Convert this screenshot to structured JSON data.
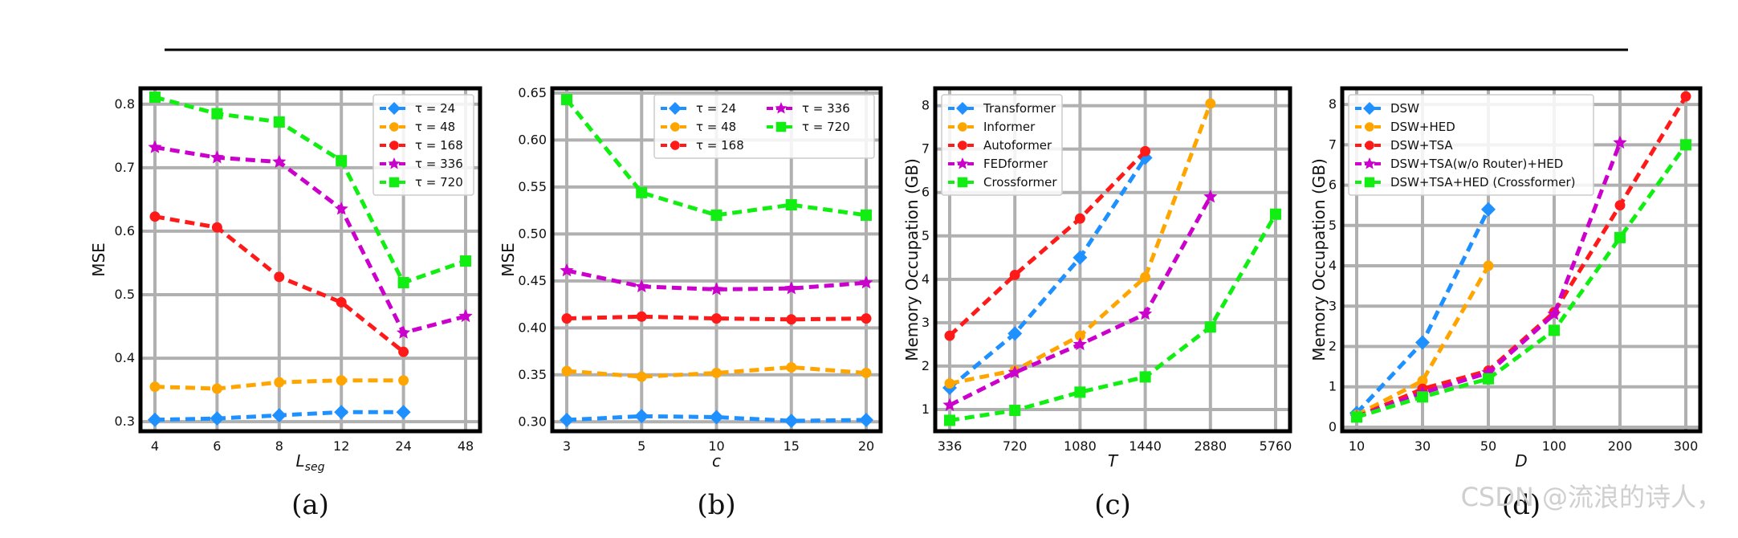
{
  "watermark": "CSDN @流浪的诗人，",
  "chart_data": [
    {
      "type": "line",
      "panel_label": "(a)",
      "xlabel": "L_seg",
      "xlabel_main": "L",
      "xlabel_sub": "seg",
      "ylabel": "MSE",
      "categories": [
        "4",
        "6",
        "8",
        "12",
        "24",
        "48"
      ],
      "ylim": [
        0.285,
        0.825
      ],
      "yticks": [
        0.3,
        0.4,
        0.5,
        0.6,
        0.7,
        0.8
      ],
      "yprecision": 1,
      "grid": true,
      "legend_position": "top-right",
      "legend_columns": 1,
      "series": [
        {
          "name": "τ = 24",
          "color": "#1e90ff",
          "marker": "diamond",
          "values": [
            0.303,
            0.305,
            0.31,
            0.315,
            0.315,
            null
          ]
        },
        {
          "name": "τ = 48",
          "color": "#ffa500",
          "marker": "circle",
          "values": [
            0.355,
            0.352,
            0.362,
            0.365,
            0.365,
            null
          ]
        },
        {
          "name": "τ = 168",
          "color": "#ff1a1a",
          "marker": "circle",
          "values": [
            0.623,
            0.606,
            0.528,
            0.488,
            0.41,
            null
          ]
        },
        {
          "name": "τ = 336",
          "color": "#cc00cc",
          "marker": "star",
          "values": [
            0.732,
            0.716,
            0.709,
            0.635,
            0.44,
            0.466
          ]
        },
        {
          "name": "τ = 720",
          "color": "#11ee11",
          "marker": "square",
          "values": [
            0.811,
            0.785,
            0.772,
            0.711,
            0.519,
            0.553
          ]
        }
      ]
    },
    {
      "type": "line",
      "panel_label": "(b)",
      "xlabel": "c",
      "ylabel": "MSE",
      "categories": [
        "3",
        "5",
        "10",
        "15",
        "20"
      ],
      "ylim": [
        0.29,
        0.655
      ],
      "yticks": [
        0.3,
        0.35,
        0.4,
        0.45,
        0.5,
        0.55,
        0.6,
        0.65
      ],
      "yprecision": 2,
      "grid": true,
      "legend_position": "top-right",
      "legend_columns": 2,
      "series": [
        {
          "name": "τ = 24",
          "color": "#1e90ff",
          "marker": "diamond",
          "values": [
            0.302,
            0.306,
            0.305,
            0.301,
            0.302
          ]
        },
        {
          "name": "τ = 48",
          "color": "#ffa500",
          "marker": "circle",
          "values": [
            0.354,
            0.348,
            0.352,
            0.358,
            0.352
          ]
        },
        {
          "name": "τ = 168",
          "color": "#ff1a1a",
          "marker": "circle",
          "values": [
            0.41,
            0.412,
            0.41,
            0.409,
            0.41
          ]
        },
        {
          "name": "τ = 336",
          "color": "#cc00cc",
          "marker": "star",
          "values": [
            0.461,
            0.444,
            0.441,
            0.442,
            0.448
          ]
        },
        {
          "name": "τ = 720",
          "color": "#11ee11",
          "marker": "square",
          "values": [
            0.643,
            0.544,
            0.52,
            0.531,
            0.52
          ]
        }
      ]
    },
    {
      "type": "line",
      "panel_label": "(c)",
      "xlabel": "T",
      "ylabel": "Memory Occupation (GB)",
      "categories": [
        "336",
        "720",
        "1080",
        "1440",
        "2880",
        "5760"
      ],
      "ylim": [
        0.5,
        8.4
      ],
      "yticks": [
        1,
        2,
        3,
        4,
        5,
        6,
        7,
        8
      ],
      "yprecision": 0,
      "grid": true,
      "legend_position": "top-left",
      "legend_columns": 1,
      "series": [
        {
          "name": "Transformer",
          "color": "#1e90ff",
          "marker": "diamond",
          "values": [
            1.5,
            2.75,
            4.5,
            6.8,
            null,
            null
          ]
        },
        {
          "name": "Informer",
          "color": "#ffa500",
          "marker": "circle",
          "values": [
            1.6,
            1.9,
            2.7,
            4.05,
            8.05,
            null
          ]
        },
        {
          "name": "Autoformer",
          "color": "#ff1a1a",
          "marker": "circle",
          "values": [
            2.7,
            4.1,
            5.4,
            6.95,
            null,
            null
          ]
        },
        {
          "name": "FEDformer",
          "color": "#cc00cc",
          "marker": "star",
          "values": [
            1.1,
            1.85,
            2.5,
            3.2,
            5.9,
            null
          ]
        },
        {
          "name": "Crossformer",
          "color": "#11ee11",
          "marker": "square",
          "values": [
            0.75,
            0.98,
            1.4,
            1.75,
            2.9,
            5.5
          ]
        }
      ]
    },
    {
      "type": "line",
      "panel_label": "(d)",
      "xlabel": "D",
      "ylabel": "Memory Occupation (GB)",
      "categories": [
        "10",
        "30",
        "50",
        "100",
        "200",
        "300"
      ],
      "ylim": [
        -0.1,
        8.4
      ],
      "yticks": [
        0,
        1,
        2,
        3,
        4,
        5,
        6,
        7,
        8
      ],
      "yprecision": 0,
      "grid": true,
      "legend_position": "top-left",
      "legend_columns": 1,
      "series": [
        {
          "name": "DSW",
          "color": "#1e90ff",
          "marker": "diamond",
          "values": [
            0.35,
            2.1,
            5.4,
            null,
            null,
            null
          ]
        },
        {
          "name": "DSW+HED",
          "color": "#ffa500",
          "marker": "circle",
          "values": [
            0.3,
            1.15,
            4.0,
            null,
            null,
            null
          ]
        },
        {
          "name": "DSW+TSA",
          "color": "#ff1a1a",
          "marker": "circle",
          "values": [
            0.25,
            0.95,
            1.4,
            2.85,
            5.5,
            8.2
          ]
        },
        {
          "name": "DSW+TSA(w/o Router)+HED",
          "color": "#cc00cc",
          "marker": "star",
          "values": [
            0.25,
            0.85,
            1.35,
            2.8,
            7.05,
            null
          ]
        },
        {
          "name": "DSW+TSA+HED (Crossformer)",
          "color": "#11ee11",
          "marker": "square",
          "values": [
            0.25,
            0.75,
            1.2,
            2.4,
            4.7,
            7.0
          ]
        }
      ]
    }
  ]
}
